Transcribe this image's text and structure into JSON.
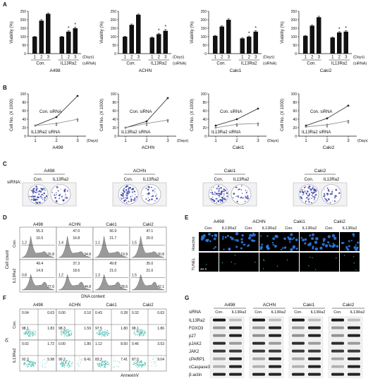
{
  "panels": {
    "A": "A",
    "B": "B",
    "C": "C",
    "D": "D",
    "E": "E",
    "F": "F",
    "G": "G"
  },
  "colors": {
    "bar": "#111111",
    "line_control": "#222222",
    "line_knockdown": "#888888",
    "hist_fill": "#9a9a9a",
    "hoechst": "#2c7be0",
    "flow_cloud": "#38b7a6",
    "blot_band": "#1a1a1a",
    "colony": "#3b44a8"
  },
  "viability_panels": [
    {
      "cell_line": "A498",
      "ylabel": "Viability (%)",
      "ylim": [
        0,
        250
      ],
      "yticks": [
        "0",
        "50",
        "100",
        "150",
        "200",
        "250"
      ],
      "days_label": "(Days)",
      "sirna_label": "(siRNA)",
      "groups": [
        "Con.",
        "IL13Ra2"
      ]
    },
    {
      "cell_line": "ACHN",
      "ylabel": "Viability (%)",
      "ylim": [
        0,
        250
      ],
      "yticks": [
        "0",
        "50",
        "100",
        "150",
        "200",
        "250"
      ],
      "days_label": "(Days)",
      "sirna_label": "(siRNA)",
      "groups": [
        "Con.",
        "IL13Ra2"
      ]
    },
    {
      "cell_line": "Caki1",
      "ylabel": "Viability (%)",
      "ylim": [
        0,
        250
      ],
      "yticks": [
        "0",
        "50",
        "100",
        "150",
        "200",
        "250"
      ],
      "days_label": "(Days)",
      "sirna_label": "(siRNA)",
      "groups": [
        "Con.",
        "IL13Ra2"
      ]
    },
    {
      "cell_line": "Caki2",
      "ylabel": "Viability (%)",
      "ylim": [
        0,
        250
      ],
      "yticks": [
        "0",
        "50",
        "100",
        "150",
        "200",
        "250"
      ],
      "days_label": "(Days)",
      "sirna_label": "(siRNA)",
      "groups": [
        "Con.",
        "IL13Ra2"
      ]
    }
  ],
  "growth_panels": [
    {
      "cell_line": "A498",
      "ylabel": "Cell No. (X 1000)",
      "ylim": [
        0,
        100
      ],
      "yticks": [
        "0",
        "20",
        "40",
        "60",
        "80",
        "100"
      ],
      "xticks": [
        "1",
        "2",
        "3"
      ],
      "days_label": "(Days)",
      "control_label": "Con. siRNA",
      "knockdown_label": "IL13Ra2 siRNA"
    },
    {
      "cell_line": "ACHN",
      "ylabel": "Cell No. (X 1000)",
      "ylim": [
        0,
        100
      ],
      "yticks": [
        "0",
        "20",
        "40",
        "60",
        "80",
        "100"
      ],
      "xticks": [
        "1",
        "2",
        "3"
      ],
      "days_label": "(Days)",
      "control_label": "Con. siRNA",
      "knockdown_label": "IL13Ra2 siRNA"
    },
    {
      "cell_line": "Caki1",
      "ylabel": "Cell No. (X 1000)",
      "ylim": [
        0,
        100
      ],
      "yticks": [
        "0",
        "20",
        "40",
        "60",
        "80",
        "100"
      ],
      "xticks": [
        "1",
        "2",
        "3"
      ],
      "days_label": "(Days)",
      "control_label": "Con. siRNA",
      "knockdown_label": "IL13Ra2 siRNA"
    },
    {
      "cell_line": "Caki2",
      "ylabel": "Cell No. (X 1000)",
      "ylim": [
        0,
        100
      ],
      "yticks": [
        "0",
        "20",
        "40",
        "60",
        "80",
        "100"
      ],
      "xticks": [
        "1",
        "2",
        "3"
      ],
      "days_label": "(Days)",
      "control_label": "Con. siRNA",
      "knockdown_label": "IL13Ra2 siRNA"
    }
  ],
  "colony_panel": {
    "row_label": "siRNA:",
    "lines": [
      "A498",
      "ACHN",
      "Caki1",
      "Caki2"
    ],
    "conditions": [
      "Con.",
      "IL13Ra2"
    ]
  },
  "cell_cycle_panel": {
    "lines": [
      "A498",
      "ACHN",
      "Caki1",
      "Caki2"
    ],
    "row_labels": [
      "Con.",
      "IL13Ra2"
    ],
    "ylabel": "Cell count",
    "xlabel": "DNA content",
    "values": [
      [
        "55.3",
        "47.0",
        "56.9",
        "47.1"
      ],
      [
        "15.5",
        "16.8",
        "21.7",
        "20.0"
      ],
      [
        "26.8",
        "34.8",
        "19.9",
        "30.8"
      ],
      [
        "49.4",
        "37.3",
        "49.8",
        "35.0"
      ],
      [
        "14.9",
        "18.6",
        "21.0",
        "21.0"
      ],
      [
        "37.6",
        "44.8",
        "28.6",
        "42.1"
      ],
      [
        "1.2",
        "1.4",
        "1.1",
        "1.5"
      ],
      [
        "0.8",
        "1.2",
        "1.3",
        "1.5"
      ]
    ]
  },
  "tunel_panel": {
    "lines": [
      "A498",
      "ACHN",
      "Caki1",
      "Caki2"
    ],
    "conditions": [
      "Con.",
      "IL13Ra2"
    ],
    "row_labels": [
      "Hoechst",
      "TUNEL"
    ],
    "corner_label": "40 X"
  },
  "flow_panel": {
    "lines": [
      "A498",
      "ACHN",
      "Caki1",
      "Caki2"
    ],
    "row_labels": [
      "Con.",
      "IL13Ra2"
    ],
    "ylabel": "PI",
    "xlabel": "AnnexinV",
    "quadrants": [
      [
        [
          "0.04",
          "0.63",
          "98.1",
          "1.83"
        ],
        [
          "0.00",
          "0.10",
          "98.3",
          "1.59"
        ],
        [
          "0.43",
          "0.28",
          "97.5",
          "1.80"
        ],
        [
          "0.32",
          "0.63",
          "98.1",
          "1.86"
        ]
      ],
      [
        [
          "0.02",
          "1.72",
          "92.3",
          "5.98"
        ],
        [
          "0.00",
          "1.80",
          "90.2",
          "8.41"
        ],
        [
          "1.12",
          "8.50",
          "83.3",
          "7.41"
        ],
        [
          "0.46",
          "3.53",
          "87.0",
          "9.04"
        ]
      ]
    ]
  },
  "blot_panel": {
    "lines": [
      "A498",
      "ACHN",
      "Caki1",
      "Caki2"
    ],
    "sirna_label": "siRNA",
    "conditions": [
      "Con.",
      "IL13Ra2"
    ],
    "proteins": [
      "IL13Ra2",
      "FOXO3",
      "p27",
      "pJAK2",
      "JAK2",
      "cPARP1",
      "cCaspase3",
      "β-actin"
    ]
  },
  "chart_data": [
    {
      "type": "bar",
      "panel": "A",
      "cell_line": "A498",
      "categories": [
        "1",
        "2",
        "3",
        "1",
        "2",
        "3"
      ],
      "groups": [
        "Con.",
        "Con.",
        "Con.",
        "IL13Ra2",
        "IL13Ra2",
        "IL13Ra2"
      ],
      "values": [
        100,
        195,
        235,
        100,
        130,
        150
      ],
      "errors": [
        2,
        6,
        5,
        3,
        6,
        7
      ],
      "significant": [
        false,
        false,
        false,
        false,
        true,
        true
      ],
      "ylabel": "Viability (%)",
      "ylim": [
        0,
        250
      ]
    },
    {
      "type": "bar",
      "panel": "A",
      "cell_line": "ACHN",
      "categories": [
        "1",
        "2",
        "3",
        "1",
        "2",
        "3"
      ],
      "groups": [
        "Con.",
        "Con.",
        "Con.",
        "IL13Ra2",
        "IL13Ra2",
        "IL13Ra2"
      ],
      "values": [
        100,
        170,
        230,
        95,
        115,
        135
      ],
      "errors": [
        3,
        5,
        4,
        4,
        5,
        8
      ],
      "significant": [
        false,
        false,
        false,
        false,
        true,
        true
      ],
      "ylabel": "Viability (%)",
      "ylim": [
        0,
        250
      ]
    },
    {
      "type": "bar",
      "panel": "A",
      "cell_line": "Caki1",
      "categories": [
        "1",
        "2",
        "3",
        "1",
        "2",
        "3"
      ],
      "groups": [
        "Con.",
        "Con.",
        "Con.",
        "IL13Ra2",
        "IL13Ra2",
        "IL13Ra2"
      ],
      "values": [
        105,
        160,
        200,
        90,
        100,
        130
      ],
      "errors": [
        3,
        5,
        6,
        3,
        4,
        6
      ],
      "significant": [
        false,
        false,
        false,
        false,
        true,
        true
      ],
      "ylabel": "Viability (%)",
      "ylim": [
        0,
        250
      ]
    },
    {
      "type": "bar",
      "panel": "A",
      "cell_line": "Caki2",
      "categories": [
        "1",
        "2",
        "3",
        "1",
        "2",
        "3"
      ],
      "groups": [
        "Con.",
        "Con.",
        "Con.",
        "IL13Ra2",
        "IL13Ra2",
        "IL13Ra2"
      ],
      "values": [
        105,
        165,
        215,
        95,
        125,
        130
      ],
      "errors": [
        3,
        5,
        6,
        3,
        5,
        6
      ],
      "significant": [
        false,
        false,
        false,
        false,
        true,
        true
      ],
      "ylabel": "Viability (%)",
      "ylim": [
        0,
        250
      ]
    },
    {
      "type": "line",
      "panel": "B",
      "cell_line": "A498",
      "x": [
        1,
        2,
        3
      ],
      "series": [
        {
          "name": "Con. siRNA",
          "values": [
            25,
            45,
            95
          ]
        },
        {
          "name": "IL13Ra2 siRNA",
          "values": [
            25,
            30,
            40
          ]
        }
      ],
      "ylabel": "Cell No. (X 1000)",
      "ylim": [
        0,
        100
      ]
    },
    {
      "type": "line",
      "panel": "B",
      "cell_line": "ACHN",
      "x": [
        1,
        2,
        3
      ],
      "series": [
        {
          "name": "Con. siRNA",
          "values": [
            20,
            35,
            90
          ]
        },
        {
          "name": "IL13Ra2 siRNA",
          "values": [
            20,
            30,
            38
          ]
        }
      ],
      "ylabel": "Cell No. (X 1000)",
      "ylim": [
        0,
        100
      ]
    },
    {
      "type": "line",
      "panel": "B",
      "cell_line": "Caki1",
      "x": [
        1,
        2,
        3
      ],
      "series": [
        {
          "name": "Con. siRNA",
          "values": [
            25,
            40,
            65
          ]
        },
        {
          "name": "IL13Ra2 siRNA",
          "values": [
            20,
            28,
            30
          ]
        }
      ],
      "ylabel": "Cell No. (X 1000)",
      "ylim": [
        0,
        100
      ]
    },
    {
      "type": "line",
      "panel": "B",
      "cell_line": "Caki2",
      "x": [
        1,
        2,
        3
      ],
      "series": [
        {
          "name": "Con. siRNA",
          "values": [
            25,
            42,
            72
          ]
        },
        {
          "name": "IL13Ra2 siRNA",
          "values": [
            22,
            27,
            36
          ]
        }
      ],
      "ylabel": "Cell No. (X 1000)",
      "ylim": [
        0,
        100
      ]
    }
  ]
}
